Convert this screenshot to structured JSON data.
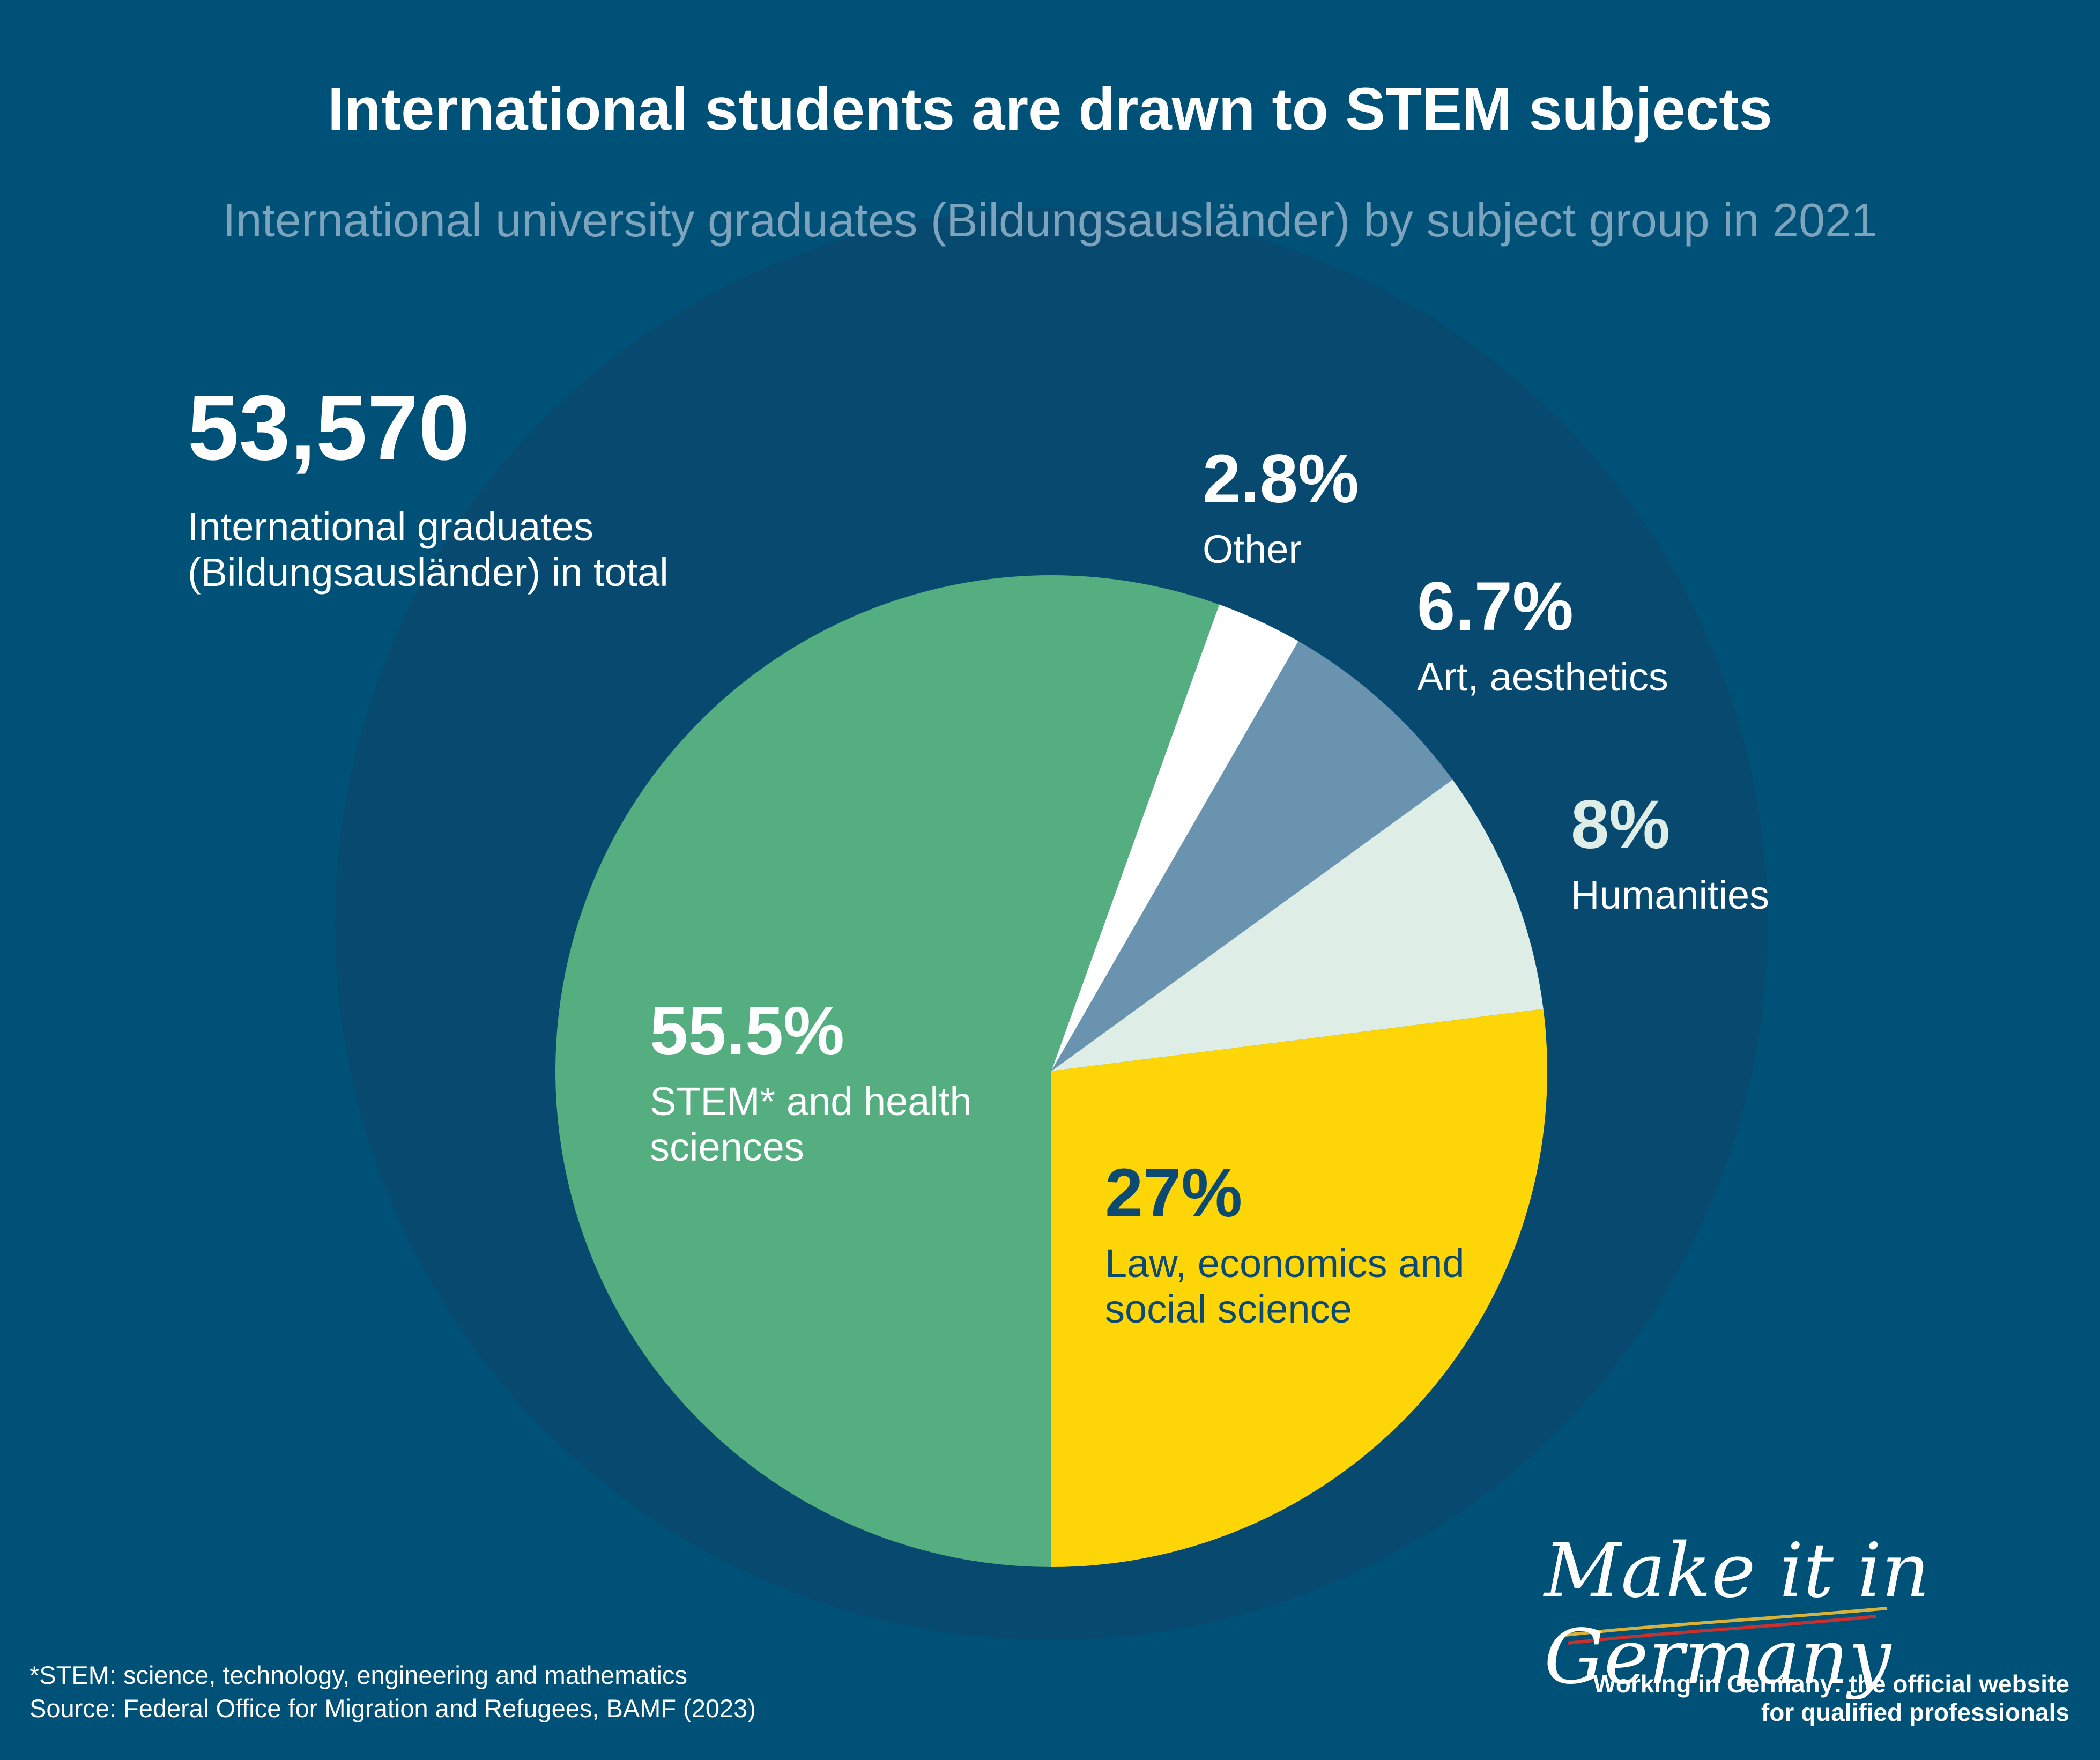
{
  "chart_data": {
    "type": "pie",
    "title": "International students are drawn to STEM subjects",
    "subtitle": "International university graduates (Bildungsausländer) by subject group in 2021",
    "total": "53,570",
    "total_label": "International graduates (Bildungsausländer) in total",
    "categories": [
      "STEM* and health sciences",
      "Other",
      "Art, aesthetics",
      "Humanities",
      "Law, economics and social science"
    ],
    "values": [
      55.5,
      2.8,
      6.7,
      8,
      27
    ],
    "value_labels": [
      "55.5%",
      "2.8%",
      "6.7%",
      "8%",
      "27%"
    ],
    "colors": [
      "#55ae80",
      "#ffffff",
      "#6993ae",
      "#deeee6",
      "#fed506"
    ],
    "footnote": "*STEM: science, technology, engineering and mathematics",
    "source": "Source: Federal Office for Migration and Refugees, BAMF (2023)",
    "logo": "Make it in Germany",
    "tagline": "Working in Germany: the official website for qualified professionals"
  }
}
